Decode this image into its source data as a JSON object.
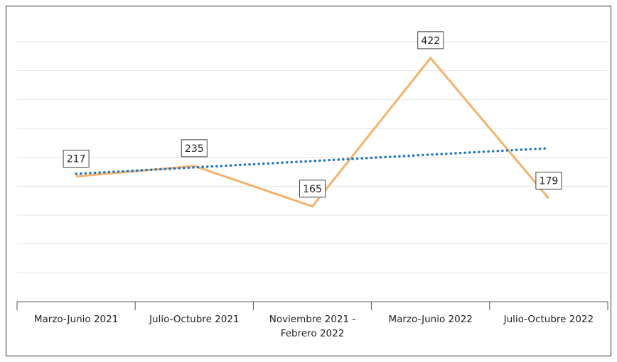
{
  "chart_data": {
    "type": "line",
    "categories": [
      "Marzo-Junio 2021",
      "Julio-Octubre 2021",
      "Noviembre 2021 - Febrero 2022",
      "Marzo-Junio 2022",
      "Julio-Octubre 2022"
    ],
    "series": [
      {
        "color": "#f5b26b",
        "values": [
          217,
          235,
          165,
          422,
          179
        ]
      }
    ],
    "trendline": {
      "type": "linear",
      "color": "#1f77c4"
    },
    "ylim": [
      0,
      450
    ],
    "yticks": [
      0,
      50,
      100,
      150,
      200,
      250,
      300,
      350,
      400,
      450
    ],
    "grid": true
  }
}
